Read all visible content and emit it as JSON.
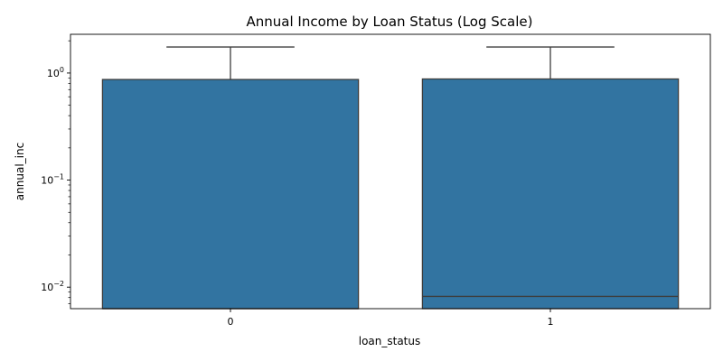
{
  "chart_data": {
    "type": "box",
    "title": "Annual Income by Loan Status (Log Scale)",
    "xlabel": "loan_status",
    "ylabel": "annual_inc",
    "yscale": "log",
    "ylim": [
      0.0063,
      2.3
    ],
    "yticks": [
      {
        "value": 0.01,
        "base": "10",
        "exp": "−2"
      },
      {
        "value": 0.1,
        "base": "10",
        "exp": "−1"
      },
      {
        "value": 1,
        "base": "10",
        "exp": "0"
      }
    ],
    "categories": [
      "0",
      "1"
    ],
    "boxes": [
      {
        "category": "0",
        "whisker_low": 0.0063,
        "q1": 0.0063,
        "median": 0.0063,
        "q3": 0.87,
        "whisker_high": 1.75
      },
      {
        "category": "1",
        "whisker_low": 0.0063,
        "q1": 0.0063,
        "median": 0.0082,
        "q3": 0.88,
        "whisker_high": 1.75
      }
    ],
    "color": "#3274a1",
    "edge_color": "#3d3d3d",
    "grid": false,
    "legend": "none"
  }
}
